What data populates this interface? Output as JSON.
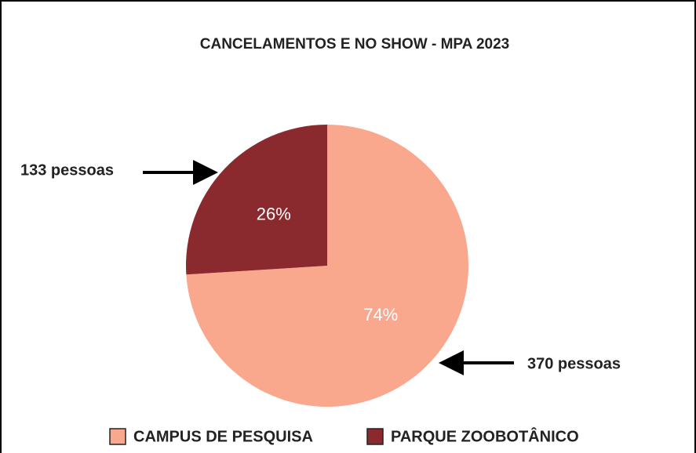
{
  "chart_data": {
    "type": "pie",
    "title": "CANCELAMENTOS E NO SHOW - MPA 2023",
    "categories": [
      "CAMPUS DE PESQUISA",
      "PARQUE ZOOBOTÂNICO"
    ],
    "values": [
      74,
      26
    ],
    "value_labels": [
      "74%",
      "26%"
    ],
    "colors": [
      "#f9a88e",
      "#8b2a2e"
    ],
    "annotations": [
      "370 pessoas",
      "133 pessoas"
    ]
  }
}
